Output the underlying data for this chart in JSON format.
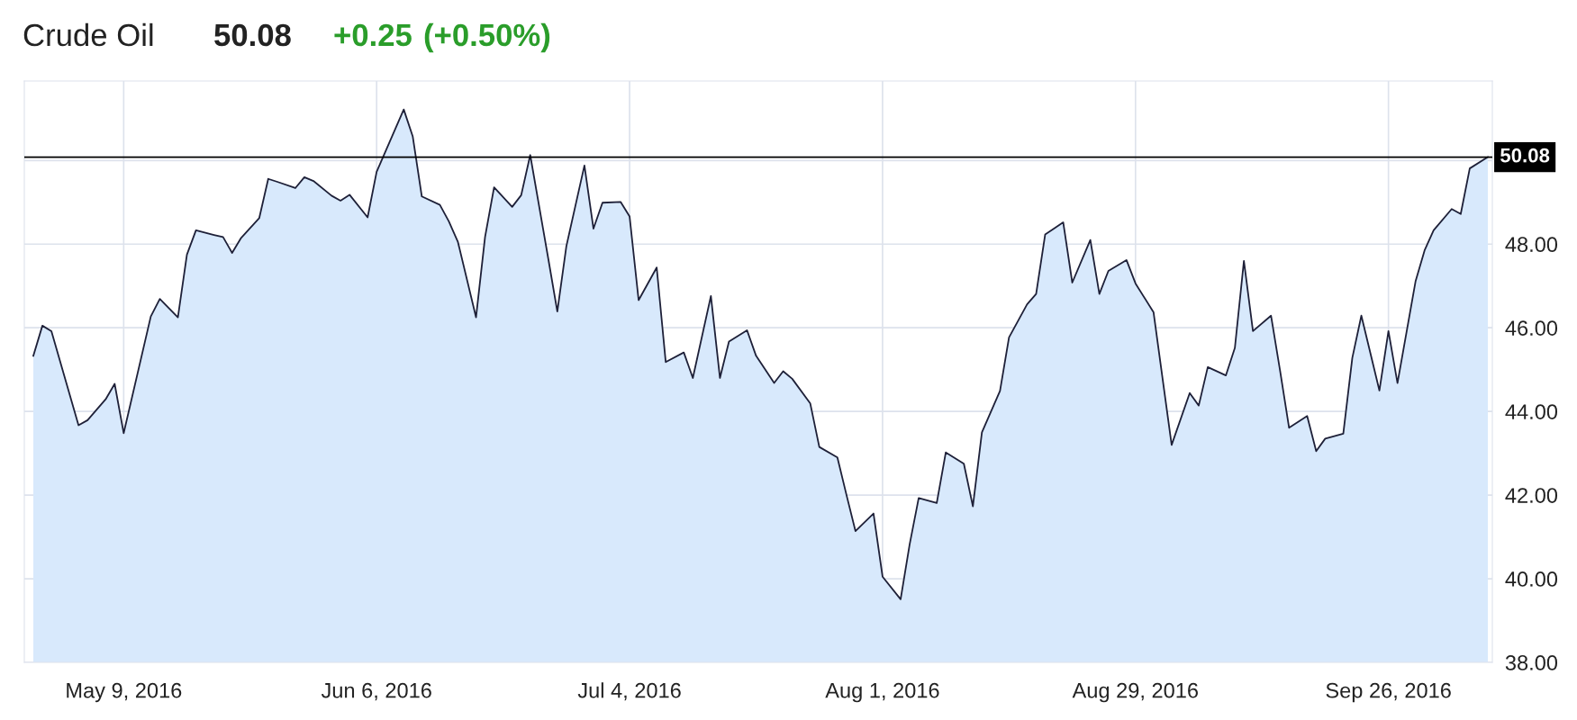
{
  "chart_data": {
    "type": "area",
    "title": "Crude Oil",
    "annotations": [
      "50.08",
      "+0.25",
      "(+0.50%)"
    ],
    "x": [
      "2016-04-29",
      "2016-04-30",
      "2016-05-01",
      "2016-05-04",
      "2016-05-05",
      "2016-05-07",
      "2016-05-08",
      "2016-05-09",
      "2016-05-12",
      "2016-05-13",
      "2016-05-15",
      "2016-05-16",
      "2016-05-17",
      "2016-05-19",
      "2016-05-20",
      "2016-05-21",
      "2016-05-22",
      "2016-05-24",
      "2016-05-25",
      "2016-05-26",
      "2016-05-28",
      "2016-05-29",
      "2016-05-30",
      "2016-06-01",
      "2016-06-02",
      "2016-06-03",
      "2016-06-05",
      "2016-06-06",
      "2016-06-09",
      "2016-06-10",
      "2016-06-11",
      "2016-06-13",
      "2016-06-14",
      "2016-06-15",
      "2016-06-17",
      "2016-06-18",
      "2016-06-19",
      "2016-06-21",
      "2016-06-22",
      "2016-06-23",
      "2016-06-25",
      "2016-06-26",
      "2016-06-27",
      "2016-06-29",
      "2016-06-30",
      "2016-07-01",
      "2016-07-03",
      "2016-07-04",
      "2016-07-05",
      "2016-07-07",
      "2016-07-08",
      "2016-07-10",
      "2016-07-11",
      "2016-07-13",
      "2016-07-14",
      "2016-07-15",
      "2016-07-17",
      "2016-07-18",
      "2016-07-20",
      "2016-07-21",
      "2016-07-22",
      "2016-07-24",
      "2016-07-25",
      "2016-07-27",
      "2016-07-28",
      "2016-07-29",
      "2016-07-31",
      "2016-08-01",
      "2016-08-03",
      "2016-08-04",
      "2016-08-05",
      "2016-08-07",
      "2016-08-08",
      "2016-08-10",
      "2016-08-11",
      "2016-08-12",
      "2016-08-14",
      "2016-08-15",
      "2016-08-17",
      "2016-08-18",
      "2016-08-19",
      "2016-08-21",
      "2016-08-22",
      "2016-08-24",
      "2016-08-25",
      "2016-08-26",
      "2016-08-28",
      "2016-08-29",
      "2016-08-31",
      "2016-09-01",
      "2016-09-02",
      "2016-09-04",
      "2016-09-05",
      "2016-09-06",
      "2016-09-08",
      "2016-09-09",
      "2016-09-10",
      "2016-09-11",
      "2016-09-13",
      "2016-09-14",
      "2016-09-15",
      "2016-09-17",
      "2016-09-18",
      "2016-09-19",
      "2016-09-21",
      "2016-09-22",
      "2016-09-23",
      "2016-09-25",
      "2016-09-26",
      "2016-09-27",
      "2016-09-29",
      "2016-09-30",
      "2016-10-01",
      "2016-10-03",
      "2016-10-04",
      "2016-10-05",
      "2016-10-07"
    ],
    "series": [
      {
        "color": "#d8e9fc",
        "values": [
          45.33,
          46.05,
          45.92,
          43.67,
          43.79,
          44.29,
          44.66,
          43.48,
          46.27,
          46.69,
          46.25,
          47.75,
          48.33,
          48.22,
          48.17,
          47.79,
          48.15,
          48.62,
          49.56,
          49.49,
          49.34,
          49.6,
          49.51,
          49.16,
          49.04,
          49.18,
          48.64,
          49.73,
          51.22,
          50.57,
          49.14,
          48.94,
          48.54,
          48.05,
          46.25,
          48.17,
          49.36,
          48.89,
          49.17,
          50.13,
          47.65,
          46.39,
          47.95,
          49.88,
          48.37,
          48.99,
          49.01,
          48.66,
          46.66,
          47.44,
          45.18,
          45.41,
          44.8,
          46.76,
          44.8,
          45.67,
          45.94,
          45.33,
          44.68,
          44.96,
          44.78,
          44.19,
          43.15,
          42.9,
          42.01,
          41.14,
          41.56,
          40.05,
          39.51,
          40.82,
          41.93,
          41.81,
          43.02,
          42.75,
          41.73,
          43.5,
          44.49,
          45.77,
          46.56,
          46.81,
          48.23,
          48.52,
          47.08,
          48.1,
          46.81,
          47.36,
          47.62,
          47.06,
          46.37,
          44.78,
          43.2,
          44.44,
          44.14,
          45.06,
          44.86,
          45.52,
          47.6,
          45.92,
          46.29,
          44.98,
          43.61,
          43.89,
          43.05,
          43.35,
          43.47,
          45.28,
          46.29,
          44.5,
          45.92,
          44.68,
          47.11,
          47.85,
          48.33,
          48.84,
          48.72,
          49.81,
          50.08
        ]
      }
    ],
    "xlim": [
      "2016-04-28",
      "2016-10-07T12:00"
    ],
    "xticks": [
      {
        "value": "2016-05-09",
        "label": "May 9, 2016"
      },
      {
        "value": "2016-06-06",
        "label": "Jun 6, 2016"
      },
      {
        "value": "2016-07-04",
        "label": "Jul 4, 2016"
      },
      {
        "value": "2016-08-01",
        "label": "Aug 1, 2016"
      },
      {
        "value": "2016-08-29",
        "label": "Aug 29, 2016"
      },
      {
        "value": "2016-09-26",
        "label": "Sep 26, 2016"
      }
    ],
    "ylim": [
      38,
      51.9
    ],
    "yticks": [
      {
        "value": 38,
        "label": "38.00"
      },
      {
        "value": 40,
        "label": "40.00"
      },
      {
        "value": 42,
        "label": "42.00"
      },
      {
        "value": 44,
        "label": "44.00"
      },
      {
        "value": 46,
        "label": "46.00"
      },
      {
        "value": 48,
        "label": "48.00"
      },
      {
        "value": 50,
        "label": null
      }
    ],
    "ref_lines": [
      {
        "axis": "y",
        "value": 50.08,
        "label": "50.08",
        "color": "#000000"
      }
    ],
    "grid": true,
    "legend": false
  }
}
